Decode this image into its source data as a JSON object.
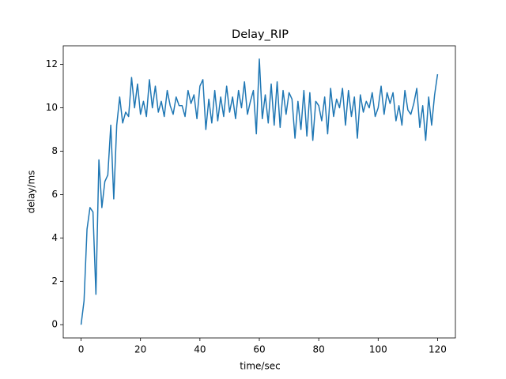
{
  "chart_data": {
    "type": "line",
    "title": "Delay_RIP",
    "x_label": "time/sec",
    "y_label": "delay/ms",
    "x": [
      0,
      1,
      2,
      3,
      4,
      5,
      6,
      7,
      8,
      9,
      10,
      11,
      12,
      13,
      14,
      15,
      16,
      17,
      18,
      19,
      20,
      21,
      22,
      23,
      24,
      25,
      26,
      27,
      28,
      29,
      30,
      31,
      32,
      33,
      34,
      35,
      36,
      37,
      38,
      39,
      40,
      41,
      42,
      43,
      44,
      45,
      46,
      47,
      48,
      49,
      50,
      51,
      52,
      53,
      54,
      55,
      56,
      57,
      58,
      59,
      60,
      61,
      62,
      63,
      64,
      65,
      66,
      67,
      68,
      69,
      70,
      71,
      72,
      73,
      74,
      75,
      76,
      77,
      78,
      79,
      80,
      81,
      82,
      83,
      84,
      85,
      86,
      87,
      88,
      89,
      90,
      91,
      92,
      93,
      94,
      95,
      96,
      97,
      98,
      99,
      100,
      101,
      102,
      103,
      104,
      105,
      106,
      107,
      108,
      109,
      110,
      111,
      112,
      113,
      114,
      115,
      116,
      117,
      118,
      119,
      120
    ],
    "series": [
      {
        "name": "delay",
        "color": "#1f77b4",
        "values": [
          0,
          1.1,
          4.4,
          5.4,
          5.2,
          1.4,
          7.6,
          5.4,
          6.6,
          6.9,
          9.2,
          5.8,
          9.2,
          10.5,
          9.3,
          9.8,
          9.6,
          11.4,
          10.0,
          11.1,
          9.7,
          10.3,
          9.6,
          11.3,
          10.0,
          11.0,
          9.8,
          10.3,
          9.6,
          10.8,
          10.1,
          9.7,
          10.5,
          10.1,
          10.1,
          9.6,
          10.8,
          10.2,
          10.6,
          9.5,
          11.0,
          11.3,
          9.0,
          10.4,
          9.3,
          10.8,
          9.4,
          10.5,
          9.6,
          11.0,
          9.8,
          10.5,
          9.5,
          10.8,
          10.0,
          11.2,
          9.7,
          10.3,
          10.8,
          8.8,
          12.25,
          9.5,
          10.6,
          9.3,
          11.1,
          9.2,
          11.2,
          9.1,
          10.8,
          9.7,
          10.7,
          10.4,
          8.6,
          10.3,
          9.0,
          10.8,
          8.7,
          10.7,
          8.5,
          10.3,
          10.1,
          9.4,
          10.5,
          8.8,
          10.9,
          9.6,
          10.4,
          10.0,
          10.9,
          9.2,
          10.8,
          9.6,
          10.5,
          8.6,
          10.6,
          9.8,
          10.3,
          10.0,
          10.7,
          9.6,
          10.0,
          11.0,
          9.7,
          10.7,
          10.2,
          10.7,
          9.4,
          10.1,
          9.2,
          10.8,
          9.9,
          9.7,
          10.2,
          10.9,
          9.1,
          10.1,
          8.5,
          10.5,
          9.2,
          10.6,
          11.55
        ]
      }
    ],
    "xlim": [
      -6,
      126
    ],
    "ylim": [
      -0.61,
      12.86
    ],
    "xticks": [
      0,
      20,
      40,
      60,
      80,
      100,
      120
    ],
    "yticks": [
      0,
      2,
      4,
      6,
      8,
      10,
      12
    ]
  }
}
